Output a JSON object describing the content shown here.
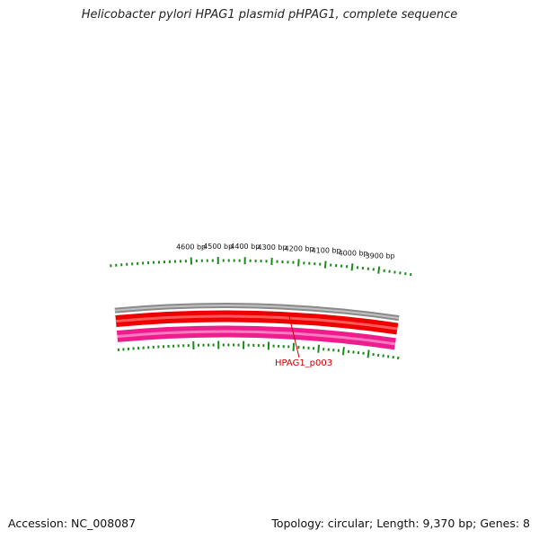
{
  "title": "Helicobacter pylori HPAG1 plasmid pHPAG1, complete sequence",
  "accession": "Accession: NC_008087",
  "summary": "Topology: circular; Length: 9,370 bp; Genes: 8",
  "sequence_length_bp": 9370,
  "outer_ruler": {
    "labels": [
      "3900 bp",
      "4000 bp",
      "4100 bp",
      "4200 bp",
      "4300 bp",
      "4400 bp",
      "4500 bp",
      "4600 bp"
    ],
    "major_positions_bp": [
      3900,
      4000,
      4100,
      4200,
      4300,
      4400,
      4500,
      4600
    ],
    "minor_step_bp": 20,
    "color": "#1a8a1a"
  },
  "tracks": [
    {
      "name": "backbone",
      "color": "#8a8a8a",
      "highlight": "#c0c0c0"
    },
    {
      "name": "forward-cds",
      "color": "#ee0000",
      "highlight": "#ff5a5a"
    },
    {
      "name": "reverse-cds",
      "color": "#ee1c8c",
      "highlight": "#ff7ac0"
    }
  ],
  "gene_label": {
    "text": "HPAG1_p003",
    "color": "#cc0000"
  }
}
